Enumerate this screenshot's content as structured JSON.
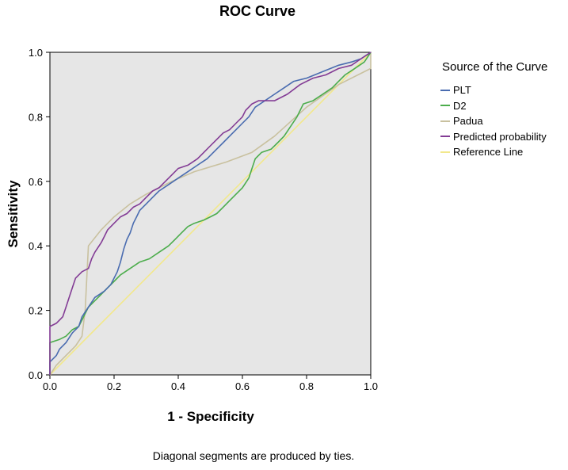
{
  "chart_data": {
    "type": "line",
    "title": "ROC Curve",
    "xlabel": "1 - Specificity",
    "ylabel": "Sensitivity",
    "xlim": [
      0,
      1
    ],
    "ylim": [
      0,
      1
    ],
    "x_ticks": [
      "0.0",
      "0.2",
      "0.4",
      "0.6",
      "0.8",
      "1.0"
    ],
    "y_ticks": [
      "0.0",
      "0.2",
      "0.4",
      "0.6",
      "0.8",
      "1.0"
    ],
    "grid": false,
    "legend_title": "Source of the Curve",
    "legend_position": "right",
    "footnote": "Diagonal segments are produced by ties.",
    "series": [
      {
        "name": "PLT",
        "color": "#4a6cb0",
        "points": [
          [
            0,
            0
          ],
          [
            0,
            0.04
          ],
          [
            0.02,
            0.06
          ],
          [
            0.03,
            0.08
          ],
          [
            0.05,
            0.1
          ],
          [
            0.07,
            0.13
          ],
          [
            0.09,
            0.15
          ],
          [
            0.1,
            0.18
          ],
          [
            0.12,
            0.21
          ],
          [
            0.14,
            0.24
          ],
          [
            0.17,
            0.26
          ],
          [
            0.19,
            0.28
          ],
          [
            0.21,
            0.32
          ],
          [
            0.22,
            0.35
          ],
          [
            0.23,
            0.39
          ],
          [
            0.24,
            0.42
          ],
          [
            0.25,
            0.44
          ],
          [
            0.26,
            0.47
          ],
          [
            0.27,
            0.49
          ],
          [
            0.28,
            0.51
          ],
          [
            0.3,
            0.53
          ],
          [
            0.32,
            0.55
          ],
          [
            0.34,
            0.57
          ],
          [
            0.37,
            0.59
          ],
          [
            0.4,
            0.61
          ],
          [
            0.43,
            0.63
          ],
          [
            0.46,
            0.65
          ],
          [
            0.49,
            0.67
          ],
          [
            0.52,
            0.7
          ],
          [
            0.54,
            0.72
          ],
          [
            0.56,
            0.74
          ],
          [
            0.58,
            0.76
          ],
          [
            0.6,
            0.78
          ],
          [
            0.62,
            0.8
          ],
          [
            0.64,
            0.83
          ],
          [
            0.67,
            0.85
          ],
          [
            0.7,
            0.87
          ],
          [
            0.73,
            0.89
          ],
          [
            0.76,
            0.91
          ],
          [
            0.8,
            0.92
          ],
          [
            0.85,
            0.94
          ],
          [
            0.9,
            0.96
          ],
          [
            0.94,
            0.97
          ],
          [
            0.97,
            0.98
          ],
          [
            1,
            1
          ]
        ]
      },
      {
        "name": "D2",
        "color": "#4cad4c",
        "points": [
          [
            0,
            0
          ],
          [
            0,
            0.1
          ],
          [
            0.03,
            0.11
          ],
          [
            0.05,
            0.12
          ],
          [
            0.07,
            0.14
          ],
          [
            0.09,
            0.15
          ],
          [
            0.1,
            0.17
          ],
          [
            0.11,
            0.19
          ],
          [
            0.12,
            0.21
          ],
          [
            0.14,
            0.23
          ],
          [
            0.16,
            0.25
          ],
          [
            0.18,
            0.27
          ],
          [
            0.2,
            0.29
          ],
          [
            0.22,
            0.31
          ],
          [
            0.25,
            0.33
          ],
          [
            0.28,
            0.35
          ],
          [
            0.31,
            0.36
          ],
          [
            0.34,
            0.38
          ],
          [
            0.37,
            0.4
          ],
          [
            0.39,
            0.42
          ],
          [
            0.41,
            0.44
          ],
          [
            0.43,
            0.46
          ],
          [
            0.45,
            0.47
          ],
          [
            0.48,
            0.48
          ],
          [
            0.5,
            0.49
          ],
          [
            0.52,
            0.5
          ],
          [
            0.54,
            0.52
          ],
          [
            0.56,
            0.54
          ],
          [
            0.58,
            0.56
          ],
          [
            0.6,
            0.58
          ],
          [
            0.62,
            0.61
          ],
          [
            0.63,
            0.64
          ],
          [
            0.64,
            0.67
          ],
          [
            0.66,
            0.69
          ],
          [
            0.69,
            0.7
          ],
          [
            0.71,
            0.72
          ],
          [
            0.73,
            0.74
          ],
          [
            0.75,
            0.77
          ],
          [
            0.77,
            0.8
          ],
          [
            0.79,
            0.84
          ],
          [
            0.82,
            0.85
          ],
          [
            0.85,
            0.87
          ],
          [
            0.88,
            0.89
          ],
          [
            0.9,
            0.91
          ],
          [
            0.92,
            0.93
          ],
          [
            0.95,
            0.95
          ],
          [
            0.98,
            0.97
          ],
          [
            1,
            1
          ]
        ]
      },
      {
        "name": "Padua",
        "color": "#c9c19f",
        "points": [
          [
            0,
            0
          ],
          [
            0.02,
            0.03
          ],
          [
            0.05,
            0.06
          ],
          [
            0.08,
            0.09
          ],
          [
            0.1,
            0.12
          ],
          [
            0.11,
            0.2
          ],
          [
            0.12,
            0.4
          ],
          [
            0.16,
            0.45
          ],
          [
            0.2,
            0.49
          ],
          [
            0.25,
            0.53
          ],
          [
            0.3,
            0.56
          ],
          [
            0.38,
            0.6
          ],
          [
            0.45,
            0.63
          ],
          [
            0.55,
            0.66
          ],
          [
            0.63,
            0.69
          ],
          [
            0.7,
            0.74
          ],
          [
            0.8,
            0.83
          ],
          [
            0.9,
            0.9
          ],
          [
            1,
            0.95
          ],
          [
            1,
            1
          ]
        ]
      },
      {
        "name": "Predicted probability",
        "color": "#833c95",
        "points": [
          [
            0,
            0
          ],
          [
            0,
            0.15
          ],
          [
            0.02,
            0.16
          ],
          [
            0.04,
            0.18
          ],
          [
            0.05,
            0.21
          ],
          [
            0.06,
            0.24
          ],
          [
            0.07,
            0.27
          ],
          [
            0.08,
            0.3
          ],
          [
            0.1,
            0.32
          ],
          [
            0.12,
            0.33
          ],
          [
            0.13,
            0.36
          ],
          [
            0.14,
            0.38
          ],
          [
            0.16,
            0.41
          ],
          [
            0.17,
            0.43
          ],
          [
            0.18,
            0.45
          ],
          [
            0.2,
            0.47
          ],
          [
            0.22,
            0.49
          ],
          [
            0.24,
            0.5
          ],
          [
            0.26,
            0.52
          ],
          [
            0.28,
            0.53
          ],
          [
            0.3,
            0.55
          ],
          [
            0.32,
            0.57
          ],
          [
            0.34,
            0.58
          ],
          [
            0.36,
            0.6
          ],
          [
            0.38,
            0.62
          ],
          [
            0.4,
            0.64
          ],
          [
            0.43,
            0.65
          ],
          [
            0.46,
            0.67
          ],
          [
            0.48,
            0.69
          ],
          [
            0.5,
            0.71
          ],
          [
            0.52,
            0.73
          ],
          [
            0.54,
            0.75
          ],
          [
            0.56,
            0.76
          ],
          [
            0.58,
            0.78
          ],
          [
            0.6,
            0.8
          ],
          [
            0.61,
            0.82
          ],
          [
            0.63,
            0.84
          ],
          [
            0.65,
            0.85
          ],
          [
            0.7,
            0.85
          ],
          [
            0.74,
            0.87
          ],
          [
            0.78,
            0.9
          ],
          [
            0.82,
            0.92
          ],
          [
            0.86,
            0.93
          ],
          [
            0.9,
            0.95
          ],
          [
            0.94,
            0.96
          ],
          [
            0.97,
            0.98
          ],
          [
            1,
            1
          ]
        ]
      },
      {
        "name": "Reference Line",
        "color": "#f2e88c",
        "points": [
          [
            0,
            0
          ],
          [
            1,
            1
          ]
        ]
      }
    ]
  }
}
